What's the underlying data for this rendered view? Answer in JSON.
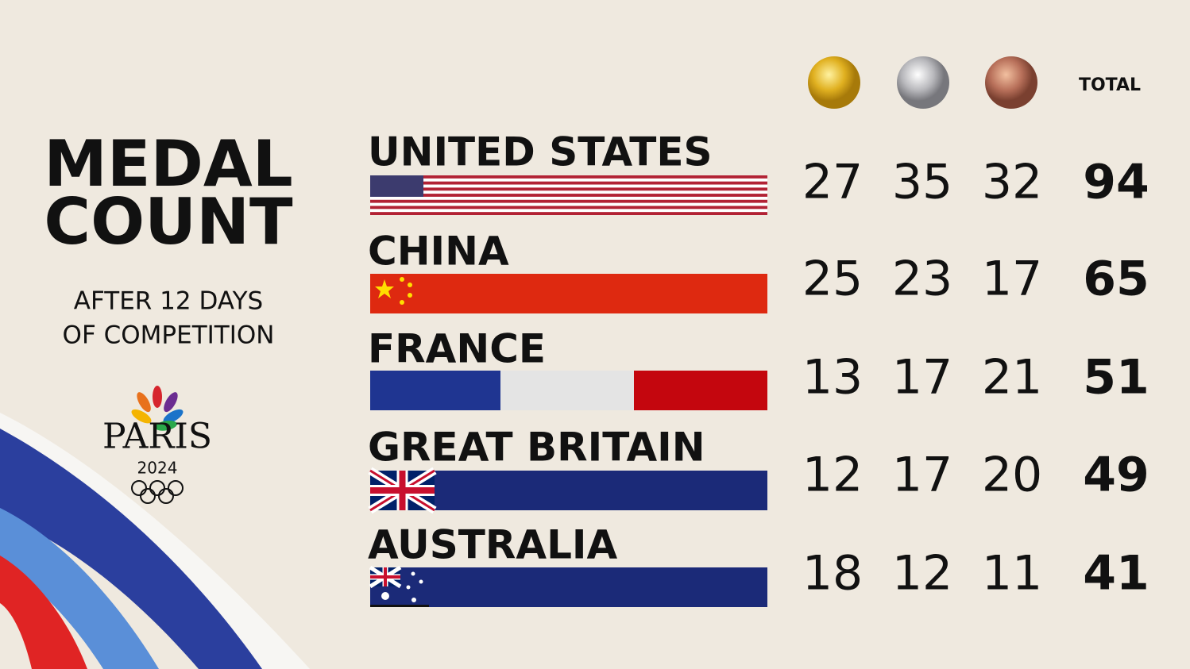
{
  "header": {
    "title": [
      "MEDAL",
      "COUNT"
    ],
    "subtitle": [
      "AFTER 12 DAYS",
      "OF COMPETITION"
    ],
    "logo": {
      "name": "PARIS",
      "year": "2024"
    }
  },
  "table": {
    "total_header": "TOTAL",
    "rows": [
      {
        "country": "UNITED STATES",
        "gold": 27,
        "silver": 35,
        "bronze": 32,
        "total": 94
      },
      {
        "country": "CHINA",
        "gold": 25,
        "silver": 23,
        "bronze": 17,
        "total": 65
      },
      {
        "country": "FRANCE",
        "gold": 13,
        "silver": 17,
        "bronze": 21,
        "total": 51
      },
      {
        "country": "GREAT BRITAIN",
        "gold": 12,
        "silver": 17,
        "bronze": 20,
        "total": 49
      },
      {
        "country": "AUSTRALIA",
        "gold": 18,
        "silver": 12,
        "bronze": 11,
        "total": 41
      }
    ]
  }
}
